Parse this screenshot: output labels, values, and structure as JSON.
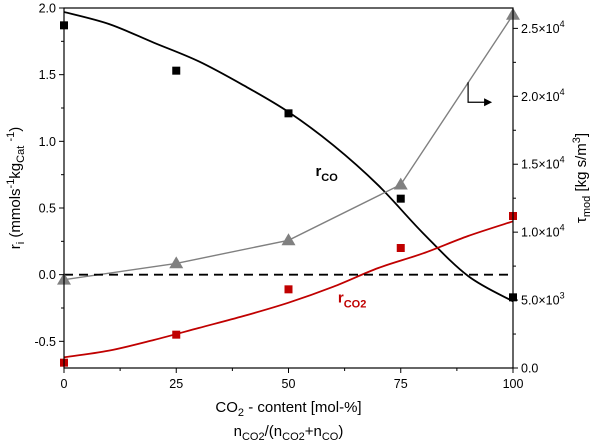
{
  "chart_data": {
    "type": "line",
    "x_axis": {
      "label": "CO",
      "label_sub": "2",
      "label_rest": " - content [mol-%]",
      "label2": "n",
      "label2_parts": [
        "n",
        "CO2",
        "/(n",
        "CO2",
        "+n",
        "CO",
        ")"
      ],
      "range": [
        0,
        100
      ],
      "ticks": [
        "0",
        "25",
        "50",
        "75",
        "100"
      ],
      "tick_values": [
        0,
        25,
        50,
        75,
        100
      ]
    },
    "y_left": {
      "label_parts": [
        "r",
        "i",
        " (mmols",
        "-1",
        "kg",
        "Cat",
        " ",
        "-1",
        ")"
      ],
      "range": [
        -0.7,
        2.0
      ],
      "ticks": [
        "-0.5",
        "0.0",
        "0.5",
        "1.0",
        "1.5",
        "2.0"
      ],
      "tick_values": [
        -0.5,
        0.0,
        0.5,
        1.0,
        1.5,
        2.0
      ]
    },
    "y_right": {
      "label_parts": [
        "τ",
        "mod",
        " [kg s/m",
        "3",
        "]"
      ],
      "range": [
        0,
        26500
      ],
      "ticks": [
        "0.0",
        "5.0×10",
        "1.0×10",
        "1.5×10",
        "2.0×10",
        "2.5×10"
      ],
      "tick_exp": [
        "",
        "3",
        "4",
        "4",
        "4",
        "4"
      ],
      "tick_values": [
        0,
        5000,
        10000,
        15000,
        20000,
        25000
      ]
    },
    "series": [
      {
        "name": "r",
        "name_sub": "CO",
        "kind": "points",
        "marker": "square",
        "color": "#000000",
        "axis": "left",
        "x": [
          0,
          25,
          50,
          75,
          100
        ],
        "y": [
          1.87,
          1.53,
          1.21,
          0.57,
          -0.17
        ]
      },
      {
        "name": "r",
        "name_sub": "CO2",
        "kind": "points",
        "marker": "square",
        "color": "#c00000",
        "axis": "left",
        "x": [
          0,
          25,
          50,
          75,
          100
        ],
        "y": [
          -0.66,
          -0.45,
          -0.11,
          0.2,
          0.44
        ]
      },
      {
        "kind": "fit",
        "color": "#000000",
        "axis": "left",
        "x": [
          0,
          10,
          20,
          30,
          40,
          50,
          60,
          70,
          80,
          90,
          100
        ],
        "y": [
          1.97,
          1.88,
          1.74,
          1.6,
          1.42,
          1.22,
          0.97,
          0.67,
          0.31,
          -0.01,
          -0.2
        ]
      },
      {
        "kind": "fit",
        "color": "#c00000",
        "axis": "left",
        "x": [
          0,
          10,
          20,
          30,
          40,
          50,
          60,
          70,
          80,
          90,
          100
        ],
        "y": [
          -0.62,
          -0.57,
          -0.49,
          -0.4,
          -0.31,
          -0.21,
          -0.09,
          0.05,
          0.16,
          0.29,
          0.4
        ]
      },
      {
        "kind": "points-line",
        "marker": "triangle",
        "color": "#808080",
        "axis": "right",
        "x": [
          0,
          25,
          50,
          75,
          100
        ],
        "y": [
          6500,
          7700,
          9400,
          13500,
          26000
        ]
      },
      {
        "kind": "reference",
        "style": "dashed",
        "color": "#000000",
        "axis": "left",
        "y": 0.0
      }
    ],
    "annotations": [
      {
        "text": "r",
        "sub": "CO",
        "color": "#000000",
        "x": 56,
        "y": 0.74
      },
      {
        "text": "r",
        "sub": "CO2",
        "color": "#c00000",
        "x": 61,
        "y": -0.21
      }
    ],
    "right_axis_arrow": {
      "x": 90,
      "y": 20300
    },
    "grid": false,
    "legend": "none"
  }
}
